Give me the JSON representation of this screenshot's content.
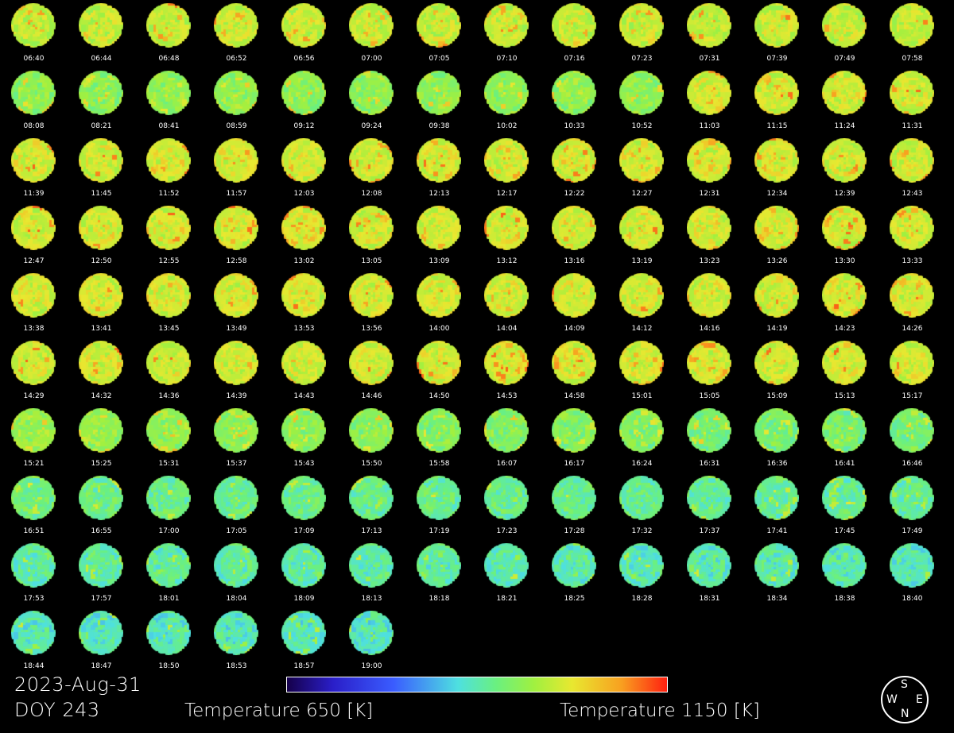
{
  "frames": [
    "06:40",
    "06:44",
    "06:48",
    "06:52",
    "06:56",
    "07:00",
    "07:05",
    "07:10",
    "07:16",
    "07:23",
    "07:31",
    "07:39",
    "07:49",
    "07:58",
    "08:08",
    "08:21",
    "08:41",
    "08:59",
    "09:12",
    "09:24",
    "09:38",
    "10:02",
    "10:33",
    "10:52",
    "11:03",
    "11:15",
    "11:24",
    "11:31",
    "11:39",
    "11:45",
    "11:52",
    "11:57",
    "12:03",
    "12:08",
    "12:13",
    "12:17",
    "12:22",
    "12:27",
    "12:31",
    "12:34",
    "12:39",
    "12:43",
    "12:47",
    "12:50",
    "12:55",
    "12:58",
    "13:02",
    "13:05",
    "13:09",
    "13:12",
    "13:16",
    "13:19",
    "13:23",
    "13:26",
    "13:30",
    "13:33",
    "13:38",
    "13:41",
    "13:45",
    "13:49",
    "13:53",
    "13:56",
    "14:00",
    "14:04",
    "14:09",
    "14:12",
    "14:16",
    "14:19",
    "14:23",
    "14:26",
    "14:29",
    "14:32",
    "14:36",
    "14:39",
    "14:43",
    "14:46",
    "14:50",
    "14:53",
    "14:58",
    "15:01",
    "15:05",
    "15:09",
    "15:13",
    "15:17",
    "15:21",
    "15:25",
    "15:31",
    "15:37",
    "15:43",
    "15:50",
    "15:58",
    "16:07",
    "16:17",
    "16:24",
    "16:31",
    "16:36",
    "16:41",
    "16:46",
    "16:51",
    "16:55",
    "17:00",
    "17:05",
    "17:09",
    "17:13",
    "17:19",
    "17:23",
    "17:28",
    "17:32",
    "17:37",
    "17:41",
    "17:45",
    "17:49",
    "17:53",
    "17:57",
    "18:01",
    "18:04",
    "18:09",
    "18:13",
    "18:18",
    "18:21",
    "18:25",
    "18:28",
    "18:31",
    "18:34",
    "18:38",
    "18:40",
    "18:44",
    "18:47",
    "18:50",
    "18:53",
    "18:57",
    "19:00"
  ],
  "date": "2023-Aug-31",
  "doy": "DOY 243",
  "colorbar": {
    "min_label": "Temperature 650 [K]",
    "max_label": "Temperature 1150 [K]",
    "min": 650,
    "max": 1150
  },
  "compass": {
    "top": "S",
    "left": "W",
    "right": "E",
    "bottom": "N"
  }
}
